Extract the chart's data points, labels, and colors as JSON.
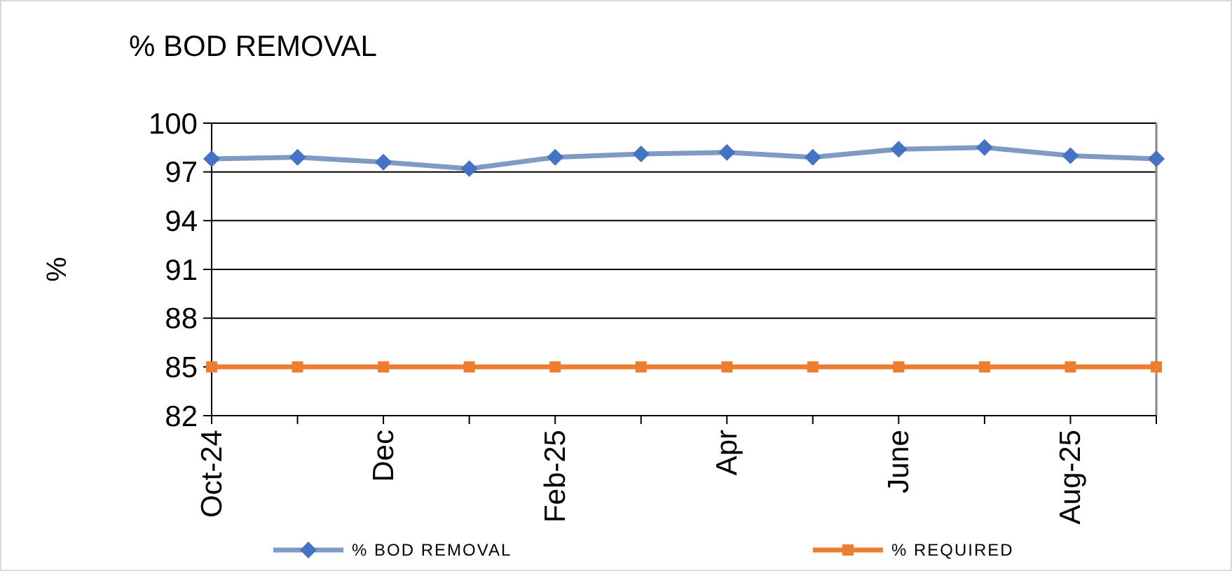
{
  "chart_data": {
    "type": "line",
    "title": "% BOD REMOVAL",
    "ylabel": "%",
    "categories": [
      "Oct-24",
      null,
      "Dec",
      null,
      "Feb-25",
      null,
      "Apr",
      null,
      "June",
      null,
      "Aug-25",
      null
    ],
    "series": [
      {
        "name": "% BOD REMOVAL",
        "color": "#7f9bc4",
        "marker": "diamond",
        "values": [
          97.8,
          97.9,
          97.6,
          97.2,
          97.9,
          98.1,
          98.2,
          97.9,
          98.4,
          98.5,
          98.0,
          97.8
        ]
      },
      {
        "name": "% REQUIRED",
        "color": "#ed7d31",
        "marker": "square",
        "values": [
          85,
          85,
          85,
          85,
          85,
          85,
          85,
          85,
          85,
          85,
          85,
          85
        ]
      }
    ],
    "ylim": [
      82,
      100
    ],
    "yticks": [
      82,
      85,
      88,
      91,
      94,
      97,
      100
    ],
    "grid": "y",
    "legend": "bottom"
  }
}
